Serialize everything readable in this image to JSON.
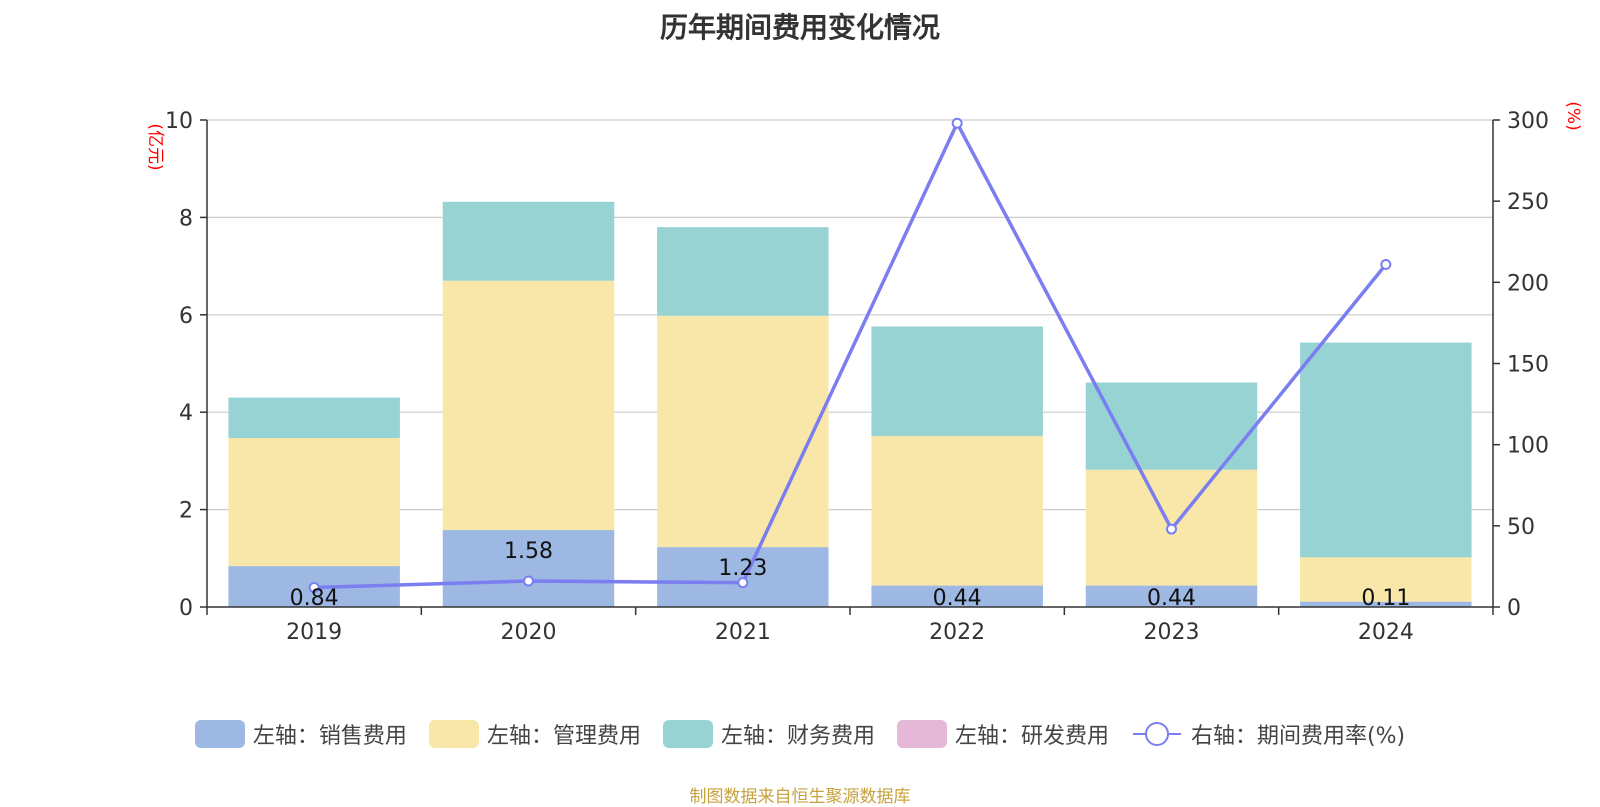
{
  "title": "历年期间费用变化情况",
  "source_note": "制图数据来自恒生聚源数据库",
  "colors": {
    "sales": "#9db8e2",
    "admin": "#f8e7a8",
    "finance": "#98d3d4",
    "rd": "#e6b8d8",
    "rate_line": "#7b7ef0",
    "axis_unit": "#ff0000",
    "grid": "#cccccc",
    "axis": "#333333"
  },
  "chart_data": {
    "type": "bar",
    "categories": [
      "2019",
      "2020",
      "2021",
      "2022",
      "2023",
      "2024"
    ],
    "left_axis": {
      "unit": "(亿元)",
      "ylim": [
        0,
        10
      ],
      "ticks": [
        0,
        2,
        4,
        6,
        8,
        10
      ]
    },
    "right_axis": {
      "unit": "(%)",
      "ylim": [
        0,
        300
      ],
      "ticks": [
        0,
        50,
        100,
        150,
        200,
        250,
        300
      ]
    },
    "series": [
      {
        "name": "左轴：销售费用",
        "type": "bar",
        "axis": "left",
        "color_key": "sales",
        "values": [
          0.84,
          1.58,
          1.23,
          0.44,
          0.44,
          0.11
        ],
        "labels": [
          "0.84",
          "1.58",
          "1.23",
          "0.44",
          "0.44",
          "0.11"
        ]
      },
      {
        "name": "左轴：管理费用",
        "type": "bar",
        "axis": "left",
        "color_key": "admin",
        "values": [
          2.63,
          5.12,
          4.75,
          3.07,
          2.38,
          0.91
        ]
      },
      {
        "name": "左轴：财务费用",
        "type": "bar",
        "axis": "left",
        "color_key": "finance",
        "values": [
          0.83,
          1.62,
          1.82,
          2.25,
          1.79,
          4.41
        ]
      },
      {
        "name": "左轴：研发费用",
        "type": "bar",
        "axis": "left",
        "color_key": "rd",
        "values": [
          0,
          0,
          0,
          0,
          0,
          0
        ]
      },
      {
        "name": "右轴：期间费用率(%)",
        "type": "line",
        "axis": "right",
        "color_key": "rate_line",
        "values": [
          12,
          16,
          15,
          298,
          48,
          211
        ]
      }
    ],
    "grid": true,
    "legend_position": "bottom"
  }
}
